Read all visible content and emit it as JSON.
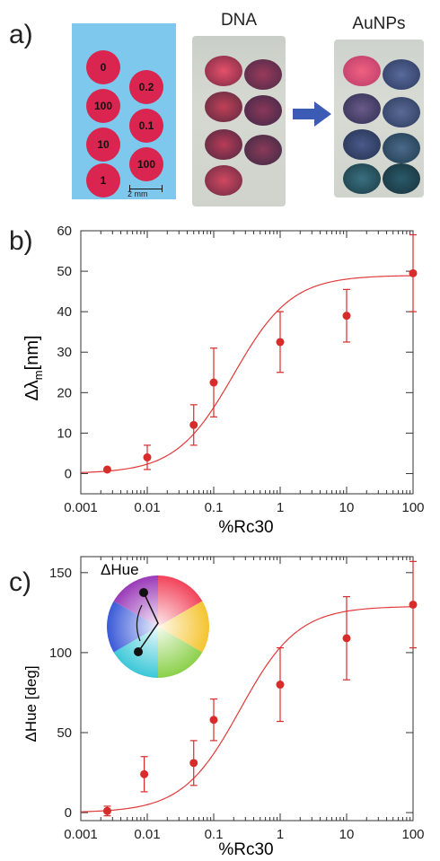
{
  "panels": {
    "a": "a)",
    "b": "b)",
    "c": "c)"
  },
  "schematic": {
    "wells": [
      "0",
      "0.2",
      "100",
      "0.1",
      "10",
      "100",
      "1"
    ],
    "scale_label": "2 mm"
  },
  "photos": {
    "left_label": "DNA",
    "right_label": "AuNPs"
  },
  "colors": {
    "well": "#d9254f",
    "background": "#7dc8ec",
    "arrow": "#3b5bb5",
    "curve": "#e23a3a",
    "marker": "#d82b2b"
  },
  "chart_data": [
    {
      "type": "scatter",
      "xlabel": "%Rc30",
      "ylabel": "Δλ",
      "ylabel_sub": "m",
      "ylabel_unit": "[nm]",
      "x_scale": "log",
      "xlim": [
        0.001,
        100
      ],
      "ylim": [
        -5,
        60
      ],
      "x_ticks": [
        "0.001",
        "0.01",
        "0.1",
        "1",
        "10",
        "100"
      ],
      "y_ticks": [
        "0",
        "10",
        "20",
        "30",
        "40",
        "50",
        "60"
      ],
      "points": [
        {
          "x": 0.0025,
          "y": 1,
          "err": 0
        },
        {
          "x": 0.01,
          "y": 4,
          "err": 3
        },
        {
          "x": 0.05,
          "y": 12,
          "err": 5
        },
        {
          "x": 0.1,
          "y": 22.5,
          "err": 8.5
        },
        {
          "x": 1,
          "y": 32.5,
          "err": 7.5
        },
        {
          "x": 10,
          "y": 39,
          "err": 6.5
        },
        {
          "x": 100,
          "y": 49.5,
          "err": 9.5
        }
      ],
      "fit": {
        "bottom": 0,
        "top": 49,
        "ec50": 0.2,
        "hill": 1
      }
    },
    {
      "type": "scatter",
      "xlabel": "%Rc30",
      "ylabel": "ΔHue [deg]",
      "inset_label": "ΔHue",
      "x_scale": "log",
      "xlim": [
        0.001,
        100
      ],
      "ylim": [
        -5,
        160
      ],
      "x_ticks": [
        "0.001",
        "0.01",
        "0.1",
        "1",
        "10",
        "100"
      ],
      "y_ticks": [
        "0",
        "50",
        "100",
        "150"
      ],
      "points": [
        {
          "x": 0.0025,
          "y": 1,
          "err": 3
        },
        {
          "x": 0.009,
          "y": 24,
          "err": 11
        },
        {
          "x": 0.05,
          "y": 31,
          "err": 14
        },
        {
          "x": 0.1,
          "y": 58,
          "err": 13
        },
        {
          "x": 1,
          "y": 80,
          "err": 23
        },
        {
          "x": 10,
          "y": 109,
          "err": 26
        },
        {
          "x": 100,
          "y": 130,
          "err": 27
        }
      ],
      "fit": {
        "bottom": 0,
        "top": 129,
        "ec50": 0.25,
        "hill": 1
      }
    }
  ]
}
